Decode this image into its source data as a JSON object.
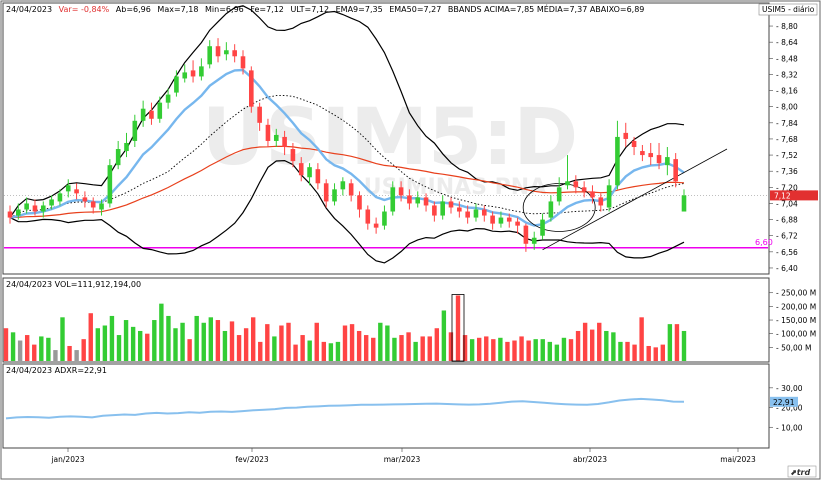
{
  "header": {
    "date": "24/04/2023",
    "var": "Var= -0,84%",
    "ab": "Ab=6,96",
    "max": "Max=7,18",
    "min": "Min=6,96",
    "fe": "Fe=7,12",
    "ult": "ULT=7,12",
    "ema9": "EMA9=7,35",
    "ema50": "EMA50=7,27",
    "bbands": "BBANDS ACIMA=7,85  MÉDIA=7,37  ABAIXO=6,89"
  },
  "symbol_label": "USIM5 - diário",
  "watermark": {
    "line1": "USIM5:D",
    "line2": "USIMINAS PNA"
  },
  "colors": {
    "up": "#33cc33",
    "down": "#ff4444",
    "neutral": "#999999",
    "ema9": "#77b7ee",
    "ema50": "#e8401c",
    "bbands": "#000000",
    "support": "#ee00ee",
    "adxr": "#88c0ee",
    "price_badge": "#e23030"
  },
  "chart_data": [
    {
      "type": "candlestick",
      "panel": "price",
      "price_axis_ticks": [
        "8,80",
        "8,64",
        "8,48",
        "8,32",
        "8,16",
        "8,00",
        "7,84",
        "7,68",
        "7,52",
        "7,36",
        "7,20",
        "7,04",
        "6,88",
        "6,72",
        "6,56",
        "6,40"
      ],
      "ylim": [
        6.36,
        8.86
      ],
      "last_price_label": "7,12",
      "support_level": {
        "value": 6.6,
        "label": "6,60"
      },
      "candles": [
        [
          6.96,
          6.9,
          7.02,
          6.84
        ],
        [
          6.92,
          6.98,
          7.04,
          6.88
        ],
        [
          6.98,
          7.04,
          7.1,
          6.94
        ],
        [
          7.02,
          6.96,
          7.08,
          6.92
        ],
        [
          6.96,
          7.02,
          7.06,
          6.9
        ],
        [
          7.02,
          7.08,
          7.12,
          6.98
        ],
        [
          7.06,
          7.14,
          7.18,
          7.02
        ],
        [
          7.16,
          7.22,
          7.28,
          7.1
        ],
        [
          7.18,
          7.14,
          7.24,
          7.08
        ],
        [
          7.1,
          7.06,
          7.16,
          7.0
        ],
        [
          7.06,
          7.0,
          7.1,
          6.94
        ],
        [
          6.98,
          7.04,
          7.08,
          6.92
        ],
        [
          7.04,
          7.42,
          7.48,
          7.0
        ],
        [
          7.42,
          7.58,
          7.66,
          7.38
        ],
        [
          7.56,
          7.64,
          7.74,
          7.5
        ],
        [
          7.66,
          7.86,
          7.92,
          7.6
        ],
        [
          7.86,
          7.98,
          8.06,
          7.8
        ],
        [
          7.96,
          7.88,
          8.04,
          7.82
        ],
        [
          7.88,
          8.04,
          8.1,
          7.84
        ],
        [
          8.04,
          8.12,
          8.18,
          7.98
        ],
        [
          8.14,
          8.3,
          8.36,
          8.1
        ],
        [
          8.28,
          8.34,
          8.42,
          8.24
        ],
        [
          8.36,
          8.3,
          8.46,
          8.24
        ],
        [
          8.3,
          8.4,
          8.48,
          8.26
        ],
        [
          8.42,
          8.6,
          8.66,
          8.38
        ],
        [
          8.6,
          8.5,
          8.68,
          8.44
        ],
        [
          8.52,
          8.56,
          8.64,
          8.46
        ],
        [
          8.56,
          8.5,
          8.62,
          8.44
        ],
        [
          8.5,
          8.38,
          8.56,
          8.32
        ],
        [
          8.36,
          8.0,
          8.4,
          7.94
        ],
        [
          8.0,
          7.84,
          8.04,
          7.76
        ],
        [
          7.82,
          7.66,
          7.88,
          7.6
        ],
        [
          7.66,
          7.72,
          7.78,
          7.6
        ],
        [
          7.7,
          7.6,
          7.76,
          7.52
        ],
        [
          7.58,
          7.46,
          7.64,
          7.4
        ],
        [
          7.44,
          7.32,
          7.5,
          7.26
        ],
        [
          7.3,
          7.4,
          7.44,
          7.22
        ],
        [
          7.38,
          7.24,
          7.44,
          7.18
        ],
        [
          7.24,
          7.06,
          7.28,
          7.0
        ],
        [
          7.06,
          7.18,
          7.24,
          7.02
        ],
        [
          7.18,
          7.26,
          7.3,
          7.12
        ],
        [
          7.24,
          7.12,
          7.28,
          7.06
        ],
        [
          7.12,
          6.98,
          7.16,
          6.9
        ],
        [
          6.98,
          6.84,
          7.02,
          6.78
        ],
        [
          6.84,
          6.8,
          6.9,
          6.74
        ],
        [
          6.82,
          6.96,
          7.02,
          6.78
        ],
        [
          6.96,
          7.2,
          7.26,
          6.92
        ],
        [
          7.2,
          7.12,
          7.26,
          7.06
        ],
        [
          7.12,
          7.04,
          7.18,
          6.98
        ],
        [
          7.04,
          7.1,
          7.16,
          7.0
        ],
        [
          7.1,
          7.02,
          7.14,
          6.96
        ],
        [
          7.02,
          6.92,
          7.06,
          6.86
        ],
        [
          6.92,
          7.06,
          7.12,
          6.88
        ],
        [
          7.06,
          7.0,
          7.1,
          6.94
        ],
        [
          7.0,
          6.96,
          7.06,
          6.9
        ],
        [
          6.96,
          6.9,
          7.02,
          6.84
        ],
        [
          6.9,
          6.98,
          7.04,
          6.86
        ],
        [
          6.98,
          6.92,
          7.02,
          6.86
        ],
        [
          6.92,
          6.84,
          6.96,
          6.78
        ],
        [
          6.84,
          6.9,
          6.96,
          6.8
        ],
        [
          6.9,
          6.86,
          6.94,
          6.8
        ],
        [
          6.86,
          6.82,
          6.9,
          6.74
        ],
        [
          6.82,
          6.64,
          6.84,
          6.56
        ],
        [
          6.64,
          6.7,
          6.76,
          6.58
        ],
        [
          6.72,
          6.88,
          6.94,
          6.68
        ],
        [
          6.9,
          7.06,
          7.12,
          6.86
        ],
        [
          7.06,
          7.2,
          7.3,
          7.02
        ],
        [
          7.22,
          7.26,
          7.52,
          7.18
        ],
        [
          7.26,
          7.2,
          7.32,
          7.14
        ],
        [
          7.2,
          7.16,
          7.26,
          7.1
        ],
        [
          7.16,
          7.1,
          7.22,
          7.04
        ],
        [
          7.1,
          7.02,
          7.14,
          6.96
        ],
        [
          7.0,
          7.22,
          7.28,
          6.96
        ],
        [
          7.22,
          7.7,
          7.86,
          7.18
        ],
        [
          7.74,
          7.68,
          7.84,
          7.6
        ],
        [
          7.66,
          7.6,
          7.7,
          7.52
        ],
        [
          7.56,
          7.52,
          7.62,
          7.46
        ],
        [
          7.54,
          7.5,
          7.64,
          7.42
        ],
        [
          7.52,
          7.44,
          7.64,
          7.38
        ],
        [
          7.42,
          7.5,
          7.6,
          7.32
        ],
        [
          7.48,
          7.26,
          7.54,
          7.2
        ],
        [
          6.96,
          7.12,
          7.18,
          6.96
        ]
      ]
    },
    {
      "type": "bar",
      "panel": "volume",
      "label": "24/04/2023  VOL=111,912,194,00",
      "axis_ticks": [
        "250,00 M",
        "200,00 M",
        "150,00 M",
        "100,00 M",
        "50,00 M"
      ],
      "ylim": [
        0,
        260
      ],
      "values": [
        120,
        105,
        75,
        95,
        60,
        90,
        85,
        40,
        160,
        55,
        40,
        80,
        175,
        120,
        130,
        165,
        95,
        150,
        125,
        110,
        100,
        150,
        210,
        165,
        120,
        140,
        80,
        165,
        140,
        160,
        150,
        110,
        145,
        95,
        120,
        160,
        70,
        135,
        90,
        130,
        140,
        60,
        95,
        75,
        140,
        70,
        65,
        70,
        130,
        135,
        110,
        95,
        85,
        140,
        130,
        85,
        95,
        105,
        70,
        90,
        90,
        120,
        185,
        105,
        240,
        95,
        80,
        85,
        90,
        80,
        85,
        70,
        75,
        90,
        75,
        80,
        80,
        70,
        60,
        85,
        80,
        110,
        140,
        115,
        140,
        110,
        105,
        70,
        70,
        60,
        160,
        55,
        50,
        60,
        135,
        135,
        110
      ]
    },
    {
      "type": "line",
      "panel": "adxr",
      "label": "24/04/2023  ADXR=22,91",
      "axis_ticks": [
        "30,00",
        "20,00",
        "10,00"
      ],
      "last_value_label": "22,91",
      "ylim": [
        0,
        36
      ],
      "values": [
        14.5,
        15.0,
        15.2,
        15.1,
        14.8,
        15.3,
        15.5,
        15.3,
        15.0,
        15.8,
        16.2,
        16.5,
        16.3,
        17.0,
        17.3,
        17.0,
        17.2,
        17.6,
        17.4,
        17.9,
        18.0,
        17.8,
        18.2,
        18.6,
        18.9,
        19.2,
        19.8,
        20.0,
        20.4,
        20.6,
        20.9,
        21.0,
        21.2,
        21.4,
        21.4,
        21.5,
        21.6,
        21.7,
        21.8,
        21.9,
        22.0,
        21.8,
        21.6,
        21.5,
        21.6,
        21.9,
        22.4,
        23.0,
        23.2,
        22.8,
        22.4,
        22.0,
        21.7,
        21.5,
        21.4,
        21.8,
        22.6,
        23.6,
        24.1,
        24.4,
        24.1,
        23.7,
        23.0,
        22.91
      ]
    }
  ],
  "x_axis_labels": [
    "jan/2023",
    "fev/2023",
    "mar/2023",
    "abr/2023",
    "mai/2023"
  ],
  "logo": "trd"
}
